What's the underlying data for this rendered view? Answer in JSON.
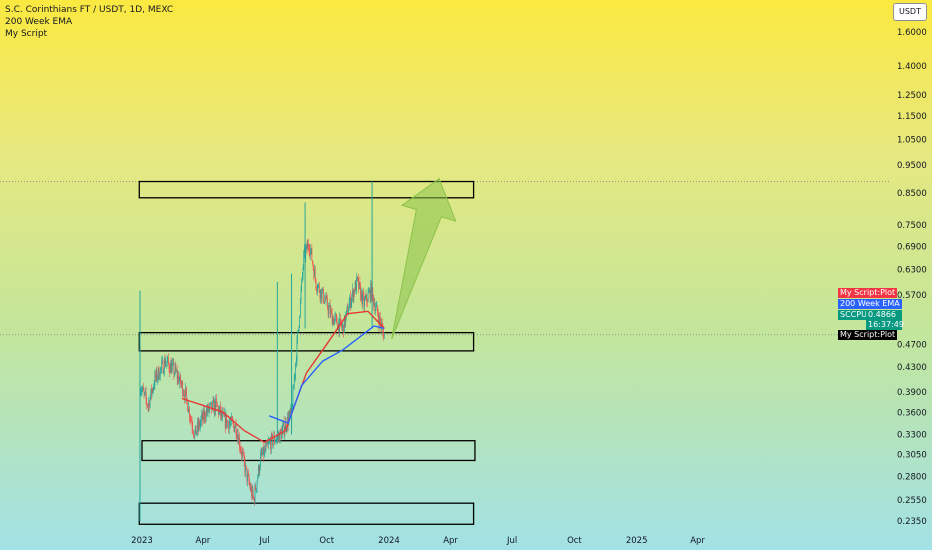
{
  "header": {
    "title": "S.C. Corinthians FT / USDT, 1D, MEXC",
    "indicators": [
      "200 Week EMA",
      "My Script"
    ]
  },
  "currency_button": "USDT",
  "price_tags": {
    "my_script_plot_top": "My Script:Plot",
    "ema_200": "200 Week EMA",
    "symbol": "SCCPUSDT",
    "price": "0.4866",
    "countdown": "16:37:49",
    "my_script_plot_bottom": "My Script:Plot"
  },
  "colors": {
    "up_candle": "#26a69a",
    "down_candle": "#ef5350",
    "ema_line": "#2962ff",
    "script_line": "#e53935",
    "box_border": "#000000",
    "arrow_fill": "#8bc34a",
    "tag_red": "#f23645",
    "tag_blue": "#2962ff",
    "tag_green": "#089981",
    "tag_black": "#000000"
  },
  "chart_data": {
    "type": "candlestick",
    "scale": "log",
    "y_ticks": [
      1.6,
      1.4,
      1.25,
      1.15,
      1.05,
      0.95,
      0.85,
      0.75,
      0.69,
      0.63,
      0.57,
      0.47,
      0.43,
      0.39,
      0.36,
      0.33,
      0.305,
      0.28,
      0.255,
      0.235
    ],
    "y_tick_labels": [
      "1.6000",
      "1.4000",
      "1.2500",
      "1.1500",
      "1.0500",
      "0.9500",
      "0.8500",
      "0.7500",
      "0.6900",
      "0.6300",
      "0.5700",
      "0.4700",
      "0.4300",
      "0.3900",
      "0.3600",
      "0.3300",
      "0.3050",
      "0.2800",
      "0.2550",
      "0.2350"
    ],
    "x_ticks": [
      {
        "date": "2023-01-01",
        "label": "2023"
      },
      {
        "date": "2023-04-01",
        "label": "Apr"
      },
      {
        "date": "2023-07-01",
        "label": "Jul"
      },
      {
        "date": "2023-10-01",
        "label": "Oct"
      },
      {
        "date": "2024-01-01",
        "label": "2024"
      },
      {
        "date": "2024-04-01",
        "label": "Apr"
      },
      {
        "date": "2024-07-01",
        "label": "Jul"
      },
      {
        "date": "2024-10-01",
        "label": "Oct"
      },
      {
        "date": "2025-01-01",
        "label": "2025"
      },
      {
        "date": "2025-04-01",
        "label": "Apr"
      }
    ],
    "last_price": 0.4866,
    "dotted_levels": [
      0.89,
      0.488
    ],
    "price_path": [
      {
        "date": "2022-12-29",
        "price": 0.4
      },
      {
        "date": "2023-01-10",
        "price": 0.37
      },
      {
        "date": "2023-01-20",
        "price": 0.41
      },
      {
        "date": "2023-02-05",
        "price": 0.44
      },
      {
        "date": "2023-02-20",
        "price": 0.42
      },
      {
        "date": "2023-03-05",
        "price": 0.39
      },
      {
        "date": "2023-03-20",
        "price": 0.33
      },
      {
        "date": "2023-04-05",
        "price": 0.36
      },
      {
        "date": "2023-04-20",
        "price": 0.37
      },
      {
        "date": "2023-05-01",
        "price": 0.35
      },
      {
        "date": "2023-05-20",
        "price": 0.34
      },
      {
        "date": "2023-06-05",
        "price": 0.28
      },
      {
        "date": "2023-06-15",
        "price": 0.255
      },
      {
        "date": "2023-06-25",
        "price": 0.3
      },
      {
        "date": "2023-07-10",
        "price": 0.32
      },
      {
        "date": "2023-07-25",
        "price": 0.33
      },
      {
        "date": "2023-08-10",
        "price": 0.36
      },
      {
        "date": "2023-08-20",
        "price": 0.5
      },
      {
        "date": "2023-08-28",
        "price": 0.66
      },
      {
        "date": "2023-09-05",
        "price": 0.7
      },
      {
        "date": "2023-09-15",
        "price": 0.6
      },
      {
        "date": "2023-09-28",
        "price": 0.56
      },
      {
        "date": "2023-10-10",
        "price": 0.52
      },
      {
        "date": "2023-10-25",
        "price": 0.5
      },
      {
        "date": "2023-11-05",
        "price": 0.56
      },
      {
        "date": "2023-11-15",
        "price": 0.6
      },
      {
        "date": "2023-11-25",
        "price": 0.55
      },
      {
        "date": "2023-12-05",
        "price": 0.58
      },
      {
        "date": "2023-12-15",
        "price": 0.53
      },
      {
        "date": "2023-12-25",
        "price": 0.4866
      }
    ],
    "wick_spikes": [
      {
        "date": "2022-12-29",
        "high": 0.58,
        "low": 0.235
      },
      {
        "date": "2023-07-20",
        "high": 0.6,
        "low": 0.32
      },
      {
        "date": "2023-08-10",
        "high": 0.62,
        "low": 0.33
      },
      {
        "date": "2023-08-30",
        "high": 0.82,
        "low": 0.5
      },
      {
        "date": "2023-12-07",
        "high": 0.89,
        "low": 0.5
      }
    ],
    "ema_200": [
      {
        "date": "2023-07-08",
        "price": 0.355
      },
      {
        "date": "2023-08-05",
        "price": 0.345
      },
      {
        "date": "2023-08-25",
        "price": 0.4
      },
      {
        "date": "2023-09-25",
        "price": 0.44
      },
      {
        "date": "2023-10-25",
        "price": 0.46
      },
      {
        "date": "2023-11-25",
        "price": 0.49
      },
      {
        "date": "2023-12-10",
        "price": 0.505
      },
      {
        "date": "2023-12-25",
        "price": 0.5
      }
    ],
    "script_plot": [
      {
        "date": "2023-03-01",
        "price": 0.38
      },
      {
        "date": "2023-04-01",
        "price": 0.37
      },
      {
        "date": "2023-05-01",
        "price": 0.36
      },
      {
        "date": "2023-06-01",
        "price": 0.335
      },
      {
        "date": "2023-07-01",
        "price": 0.32
      },
      {
        "date": "2023-08-01",
        "price": 0.335
      },
      {
        "date": "2023-09-01",
        "price": 0.42
      },
      {
        "date": "2023-10-01",
        "price": 0.47
      },
      {
        "date": "2023-11-01",
        "price": 0.53
      },
      {
        "date": "2023-12-01",
        "price": 0.535
      },
      {
        "date": "2023-12-25",
        "price": 0.5
      }
    ],
    "zones": [
      {
        "start": "2022-12-28",
        "end": "2024-05-05",
        "top": 0.89,
        "bottom": 0.835
      },
      {
        "start": "2022-12-28",
        "end": "2024-05-05",
        "top": 0.492,
        "bottom": 0.458
      },
      {
        "start": "2023-01-01",
        "end": "2024-05-07",
        "top": 0.322,
        "bottom": 0.298
      },
      {
        "start": "2022-12-28",
        "end": "2024-05-05",
        "top": 0.252,
        "bottom": 0.232
      }
    ],
    "arrow": {
      "from_date": "2024-01-05",
      "from_price": 0.48,
      "to_date": "2024-03-15",
      "to_price": 0.9
    }
  }
}
